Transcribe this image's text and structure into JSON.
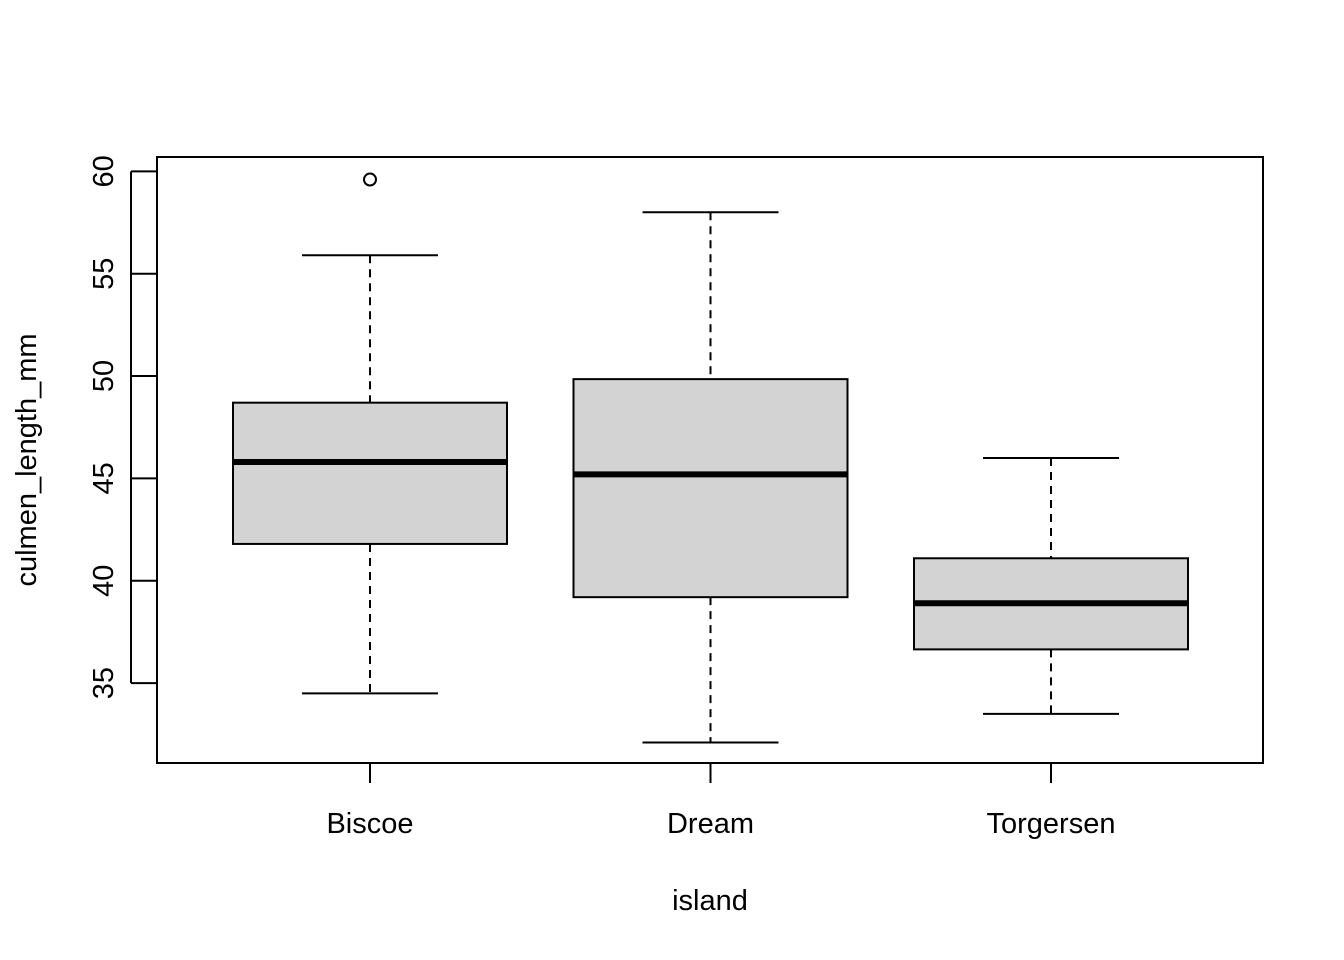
{
  "chart_data": {
    "type": "boxplot",
    "xlabel": "island",
    "ylabel": "culmen_length_mm",
    "categories": [
      "Biscoe",
      "Dream",
      "Torgersen"
    ],
    "yticks": [
      35,
      40,
      45,
      50,
      55,
      60
    ],
    "ylim": [
      31.1,
      60.7
    ],
    "boxes": [
      {
        "category": "Biscoe",
        "whisker_low": 34.5,
        "q1": 41.8,
        "median": 45.8,
        "q3": 48.7,
        "whisker_high": 55.9,
        "outliers": [
          59.6
        ]
      },
      {
        "category": "Dream",
        "whisker_low": 32.1,
        "q1": 39.2,
        "median": 45.2,
        "q3": 49.85,
        "whisker_high": 58.0,
        "outliers": []
      },
      {
        "category": "Torgersen",
        "whisker_low": 33.5,
        "q1": 36.65,
        "median": 38.9,
        "q3": 41.1,
        "whisker_high": 46.0,
        "outliers": []
      }
    ],
    "box_fill": "#d3d3d3",
    "line_color": "#000000",
    "grid": false,
    "legend": "none"
  }
}
